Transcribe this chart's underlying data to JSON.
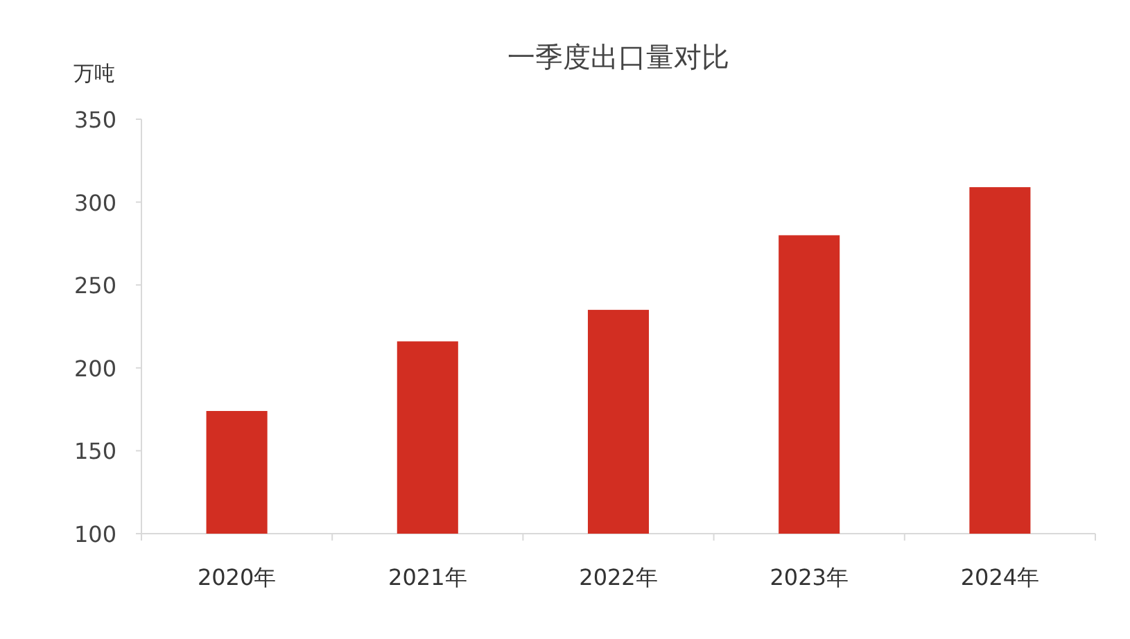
{
  "chart_data": {
    "type": "bar",
    "title": "一季度出口量对比",
    "ylabel": "万吨",
    "categories": [
      "2020年",
      "2021年",
      "2022年",
      "2023年",
      "2024年"
    ],
    "values": [
      174,
      216,
      235,
      280,
      309
    ],
    "color": "#d22e22",
    "ylim": [
      100,
      350
    ],
    "yticks": [
      100,
      150,
      200,
      250,
      300,
      350
    ]
  }
}
